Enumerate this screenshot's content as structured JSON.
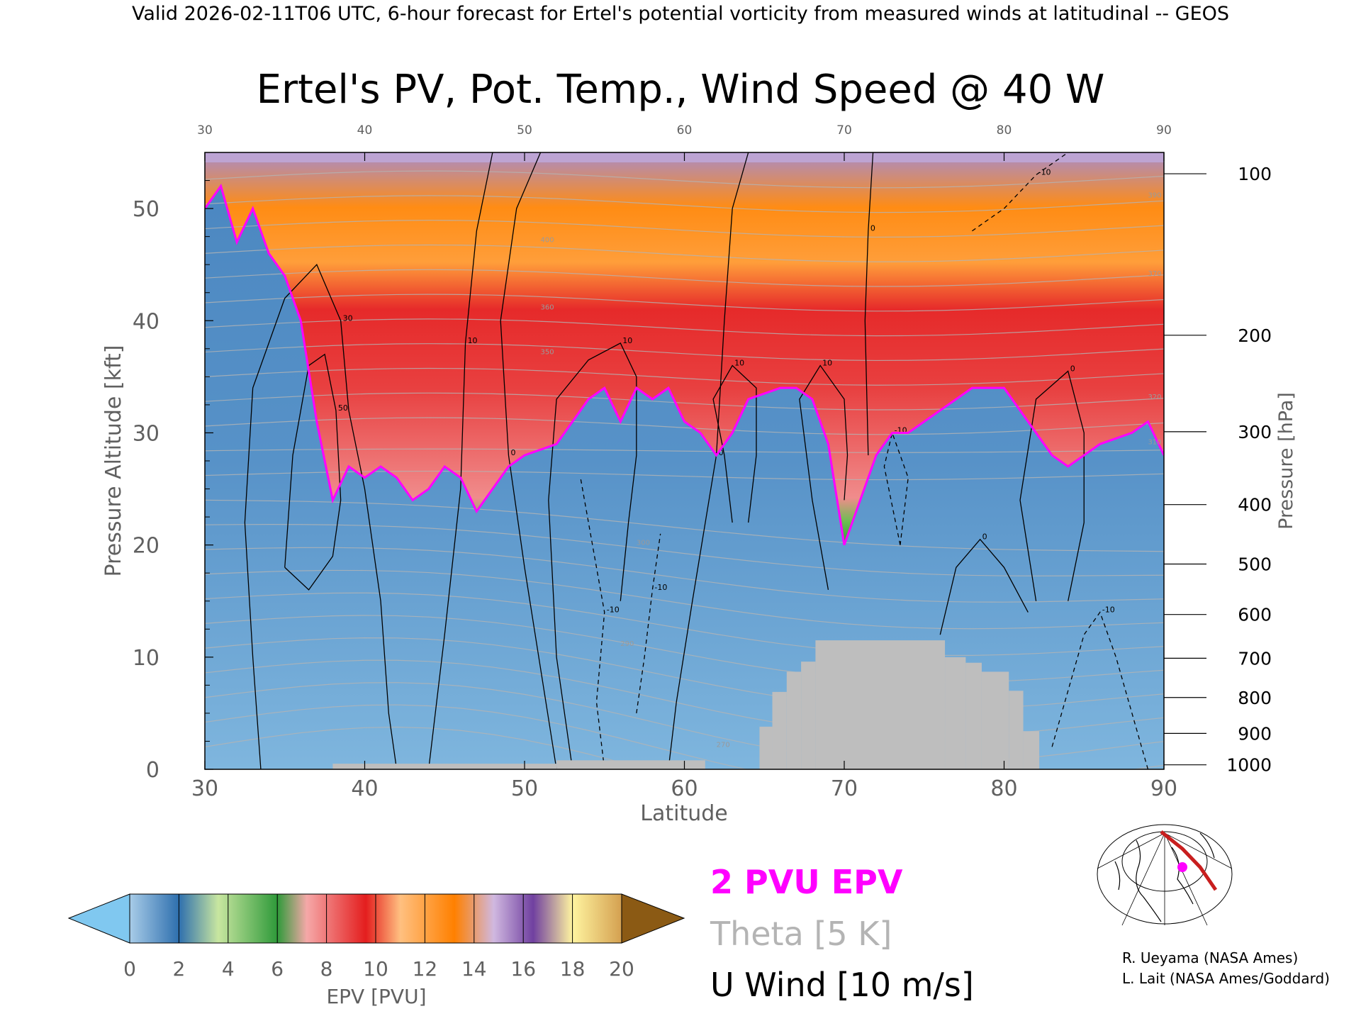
{
  "header": "Valid 2026-02-11T06 UTC, 6-hour forecast for Ertel's potential vorticity from measured winds at latitudinal -- GEOS",
  "chart_data": {
    "type": "heatmap",
    "title": "Ertel's PV, Pot. Temp., Wind Speed @ 40 W",
    "xlabel": "Latitude",
    "ylabel": "Pressure Altitude [kft]",
    "y2label": "Pressure [hPa]",
    "xlim": [
      30,
      90
    ],
    "ylim": [
      0,
      55
    ],
    "x_ticks": [
      "30",
      "40",
      "50",
      "60",
      "70",
      "80",
      "90"
    ],
    "y_ticks": [
      "0",
      "10",
      "20",
      "30",
      "40",
      "50"
    ],
    "pressure_ticks": [
      {
        "label": "100",
        "kft": 53.1
      },
      {
        "label": "200",
        "kft": 38.7
      },
      {
        "label": "300",
        "kft": 30.1
      },
      {
        "label": "400",
        "kft": 23.6
      },
      {
        "label": "500",
        "kft": 18.3
      },
      {
        "label": "600",
        "kft": 13.8
      },
      {
        "label": "700",
        "kft": 9.9
      },
      {
        "label": "800",
        "kft": 6.4
      },
      {
        "label": "900",
        "kft": 3.2
      },
      {
        "label": "1000",
        "kft": 0.4
      }
    ],
    "tropopause_2pvu_kft": [
      [
        30,
        50
      ],
      [
        31,
        52
      ],
      [
        32,
        47
      ],
      [
        33,
        50
      ],
      [
        34,
        46
      ],
      [
        35,
        44
      ],
      [
        36,
        40
      ],
      [
        37,
        31
      ],
      [
        38,
        24
      ],
      [
        39,
        27
      ],
      [
        40,
        26
      ],
      [
        41,
        27
      ],
      [
        42,
        26
      ],
      [
        43,
        24
      ],
      [
        44,
        25
      ],
      [
        45,
        27
      ],
      [
        46,
        26
      ],
      [
        47,
        23
      ],
      [
        48,
        25
      ],
      [
        49,
        27
      ],
      [
        50,
        28
      ],
      [
        52,
        29
      ],
      [
        53,
        31
      ],
      [
        54,
        33
      ],
      [
        55,
        34
      ],
      [
        56,
        31
      ],
      [
        57,
        34
      ],
      [
        58,
        33
      ],
      [
        59,
        34
      ],
      [
        60,
        31
      ],
      [
        61,
        30
      ],
      [
        62,
        28
      ],
      [
        63,
        30
      ],
      [
        64,
        33
      ],
      [
        66,
        34
      ],
      [
        67,
        34
      ],
      [
        68,
        33
      ],
      [
        69,
        29
      ],
      [
        70,
        20
      ],
      [
        71,
        24
      ],
      [
        72,
        28
      ],
      [
        73,
        30
      ],
      [
        74,
        30
      ],
      [
        75,
        31
      ],
      [
        76,
        32
      ],
      [
        77,
        33
      ],
      [
        78,
        34
      ],
      [
        80,
        34
      ],
      [
        82,
        30
      ],
      [
        83,
        28
      ],
      [
        84,
        27
      ],
      [
        86,
        29
      ],
      [
        88,
        30
      ],
      [
        89,
        31
      ],
      [
        90,
        28
      ]
    ],
    "pv_levels": [
      {
        "kft": 0,
        "pvu": 0.5
      },
      {
        "kft": 20,
        "pvu": 1.0
      },
      {
        "kft": 28,
        "pvu": 2.0
      },
      {
        "kft": 31,
        "pvu": 5.0
      },
      {
        "kft": 36,
        "pvu": 8.0
      },
      {
        "kft": 45,
        "pvu": 10.0
      },
      {
        "kft": 50,
        "pvu": 12.0
      },
      {
        "kft": 54,
        "pvu": 15.0
      }
    ],
    "terrain": [
      {
        "lat_start": 38,
        "lat_end": 52,
        "top_kft": 0.5
      },
      {
        "lat_start": 52,
        "lat_end": 61.3,
        "top_kft": 0.8
      },
      {
        "lat_start": 64.7,
        "lat_end": 65.5,
        "top_kft": 3.8
      },
      {
        "lat_start": 65.5,
        "lat_end": 66.4,
        "top_kft": 6.9
      },
      {
        "lat_start": 66.4,
        "lat_end": 67.3,
        "top_kft": 8.7
      },
      {
        "lat_start": 67.3,
        "lat_end": 68.2,
        "top_kft": 9.6
      },
      {
        "lat_start": 68.2,
        "lat_end": 76.3,
        "top_kft": 11.5
      },
      {
        "lat_start": 76.3,
        "lat_end": 77.6,
        "top_kft": 10.0
      },
      {
        "lat_start": 77.6,
        "lat_end": 78.6,
        "top_kft": 9.5
      },
      {
        "lat_start": 78.6,
        "lat_end": 80.3,
        "top_kft": 8.7
      },
      {
        "lat_start": 80.3,
        "lat_end": 81.2,
        "top_kft": 7.0
      },
      {
        "lat_start": 81.2,
        "lat_end": 82.2,
        "top_kft": 3.4
      }
    ],
    "u_wind_contours": [
      {
        "label": "30",
        "dashed": false,
        "points": [
          [
            33.5,
            0
          ],
          [
            33,
            10
          ],
          [
            32.5,
            22
          ],
          [
            33,
            34
          ],
          [
            35,
            42
          ],
          [
            37,
            45
          ],
          [
            38.5,
            40
          ],
          [
            39,
            32
          ],
          [
            40,
            25
          ],
          [
            41,
            15
          ],
          [
            41.5,
            5
          ],
          [
            42,
            0
          ]
        ]
      },
      {
        "label": "50",
        "dashed": false,
        "points": [
          [
            35,
            18
          ],
          [
            35.5,
            28
          ],
          [
            36.5,
            36
          ],
          [
            37.5,
            37
          ],
          [
            38.2,
            32
          ],
          [
            38.5,
            24
          ],
          [
            38,
            19
          ],
          [
            36.5,
            16
          ],
          [
            35,
            18
          ]
        ]
      },
      {
        "label": "10",
        "dashed": false,
        "points": [
          [
            44,
            0
          ],
          [
            45,
            12
          ],
          [
            46,
            25
          ],
          [
            46.3,
            38
          ],
          [
            47,
            48
          ],
          [
            48,
            55
          ]
        ]
      },
      {
        "label": "0",
        "dashed": false,
        "points": [
          [
            52,
            0
          ],
          [
            51,
            9
          ],
          [
            50,
            18
          ],
          [
            49,
            28
          ],
          [
            48.5,
            40
          ],
          [
            49.5,
            50
          ],
          [
            51,
            55
          ]
        ]
      },
      {
        "label": "10",
        "dashed": false,
        "points": [
          [
            53,
            0
          ],
          [
            52,
            10
          ],
          [
            51.5,
            24
          ],
          [
            52,
            33
          ],
          [
            54,
            36.5
          ],
          [
            56,
            38
          ],
          [
            57,
            35
          ],
          [
            57,
            28
          ],
          [
            56.5,
            22
          ],
          [
            56,
            15
          ]
        ]
      },
      {
        "label": "10",
        "dashed": false,
        "points": [
          [
            63,
            22
          ],
          [
            62.5,
            28
          ],
          [
            61.8,
            33
          ],
          [
            63,
            36
          ],
          [
            64.5,
            34
          ],
          [
            64.5,
            28
          ],
          [
            64,
            22
          ]
        ]
      },
      {
        "label": "0",
        "dashed": false,
        "points": [
          [
            59,
            0
          ],
          [
            59.5,
            6
          ],
          [
            60.5,
            15
          ],
          [
            62,
            28
          ],
          [
            62.5,
            40
          ],
          [
            63,
            50
          ],
          [
            64,
            55
          ]
        ]
      },
      {
        "label": "10",
        "dashed": false,
        "points": [
          [
            69,
            16
          ],
          [
            68,
            24
          ],
          [
            67.2,
            33
          ],
          [
            68.5,
            36
          ],
          [
            70,
            33
          ],
          [
            70.2,
            28
          ],
          [
            70,
            24
          ]
        ]
      },
      {
        "label": "0",
        "dashed": false,
        "points": [
          [
            71.5,
            28
          ],
          [
            71.3,
            40
          ],
          [
            71.5,
            48
          ],
          [
            71.8,
            55
          ]
        ]
      },
      {
        "label": "0",
        "dashed": false,
        "points": [
          [
            76,
            12
          ],
          [
            77,
            18
          ],
          [
            78.5,
            20.5
          ],
          [
            80,
            18
          ],
          [
            81.5,
            14
          ]
        ]
      },
      {
        "label": "0",
        "dashed": false,
        "points": [
          [
            82,
            15
          ],
          [
            81,
            24
          ],
          [
            82,
            33
          ],
          [
            84,
            35.5
          ],
          [
            85,
            30
          ],
          [
            85,
            22
          ],
          [
            84,
            15
          ]
        ]
      },
      {
        "label": "-10",
        "dashed": true,
        "points": [
          [
            55,
            0
          ],
          [
            54.5,
            6
          ],
          [
            55,
            14
          ],
          [
            54,
            22
          ],
          [
            53.5,
            26
          ]
        ]
      },
      {
        "label": "-10",
        "dashed": true,
        "points": [
          [
            57,
            5
          ],
          [
            57.5,
            10
          ],
          [
            58,
            16
          ],
          [
            58.5,
            21
          ]
        ]
      },
      {
        "label": "-10",
        "dashed": true,
        "points": [
          [
            73.5,
            20
          ],
          [
            72.5,
            27
          ],
          [
            73,
            30
          ],
          [
            74,
            26
          ],
          [
            73.5,
            20
          ]
        ]
      },
      {
        "label": "-10",
        "dashed": true,
        "points": [
          [
            78,
            48
          ],
          [
            80,
            50
          ],
          [
            82,
            53
          ],
          [
            84,
            55
          ]
        ]
      },
      {
        "label": "-10",
        "dashed": true,
        "points": [
          [
            83,
            2
          ],
          [
            84,
            7
          ],
          [
            85,
            12
          ],
          [
            86,
            14
          ],
          [
            87,
            10
          ],
          [
            88,
            5
          ],
          [
            89,
            0
          ]
        ]
      }
    ],
    "theta_labels": [
      {
        "lat": 51,
        "kft": 47,
        "label": "400"
      },
      {
        "lat": 51,
        "kft": 41,
        "label": "360"
      },
      {
        "lat": 51,
        "kft": 37,
        "label": "350"
      },
      {
        "lat": 57,
        "kft": 20,
        "label": "300"
      },
      {
        "lat": 56,
        "kft": 11,
        "label": "290"
      },
      {
        "lat": 62,
        "kft": 2,
        "label": "270"
      },
      {
        "lat": 89,
        "kft": 51,
        "label": "390"
      },
      {
        "lat": 89,
        "kft": 44,
        "label": "370"
      },
      {
        "lat": 89,
        "kft": 33,
        "label": "320"
      },
      {
        "lat": 89,
        "kft": 29,
        "label": "310"
      }
    ]
  },
  "colorbar": {
    "title": "EPV [PVU]",
    "tick_labels": [
      "0",
      "2",
      "4",
      "6",
      "8",
      "10",
      "12",
      "14",
      "16",
      "18",
      "20"
    ],
    "under_color": "#80c8f0",
    "over_color": "#8b5a14"
  },
  "legend": {
    "pvu_label": "2 PVU EPV",
    "theta_label": "Theta [5 K]",
    "wind_label": "U Wind [10 m/s]",
    "pvu_color": "#ff00ff",
    "theta_color": "#b4b4b4",
    "wind_color": "#000000"
  },
  "credits": {
    "line1": "R. Ueyama (NASA Ames)",
    "line2": "L. Lait (NASA Ames/Goddard)"
  },
  "colors": {
    "terrain": "#bebebe",
    "tropopause": "#ff00ff",
    "troposphere": "#5a96c8"
  }
}
